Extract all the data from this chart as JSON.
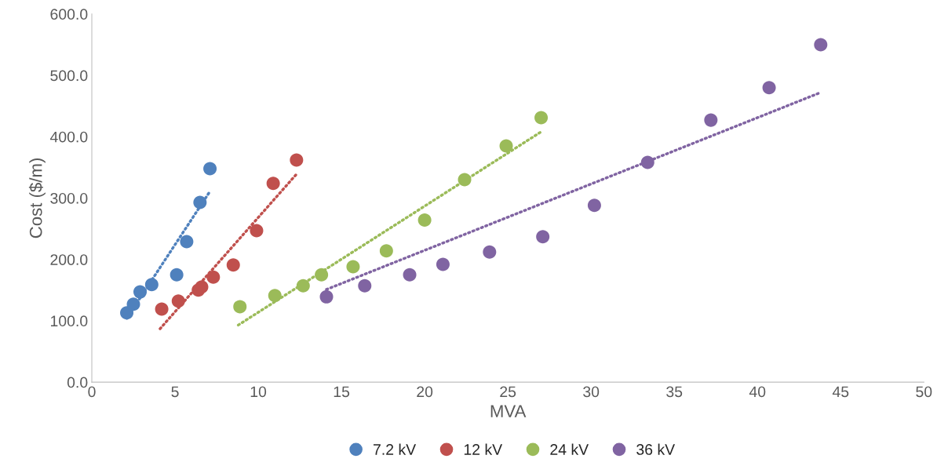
{
  "chart_data": {
    "type": "scatter",
    "xlabel": "MVA",
    "ylabel": "Cost ($/m)",
    "xlim": [
      0,
      50
    ],
    "xticks": [
      0,
      5,
      10,
      15,
      20,
      25,
      30,
      35,
      40,
      45,
      50
    ],
    "ylim": [
      0,
      600
    ],
    "yticks": [
      {
        "value": 0,
        "label": "0.0"
      },
      {
        "value": 100,
        "label": "100.0"
      },
      {
        "value": 200,
        "label": "200.0"
      },
      {
        "value": 300,
        "label": "300.0"
      },
      {
        "value": 400,
        "label": "400.0"
      },
      {
        "value": 500,
        "label": "500.0"
      },
      {
        "value": 600,
        "label": "600.0"
      }
    ],
    "grid": false,
    "legend": "bottom",
    "marker": "circle",
    "series": [
      {
        "name": "7.2 kV",
        "color": "#4f81bd",
        "x": [
          2.1,
          2.5,
          2.9,
          3.6,
          5.1,
          5.7,
          6.5,
          7.1
        ],
        "values": [
          113,
          127,
          147,
          159,
          175,
          229,
          293,
          348
        ]
      },
      {
        "name": "12 kV",
        "color": "#c0504d",
        "x": [
          4.2,
          5.2,
          6.4,
          6.6,
          7.3,
          8.5,
          9.9,
          10.9,
          12.3
        ],
        "values": [
          119,
          132,
          150,
          155,
          171,
          191,
          247,
          324,
          362
        ]
      },
      {
        "name": "24 kV",
        "color": "#9bbb59",
        "x": [
          8.9,
          11.0,
          12.7,
          13.8,
          15.7,
          17.7,
          20.0,
          22.4,
          24.9,
          27.0
        ],
        "values": [
          123,
          141,
          157,
          175,
          188,
          214,
          264,
          330,
          385,
          431
        ]
      },
      {
        "name": "36 kV",
        "color": "#8064a2",
        "x": [
          14.1,
          16.4,
          19.1,
          21.1,
          23.9,
          27.1,
          30.2,
          33.4,
          37.2,
          40.7,
          43.8
        ],
        "values": [
          139,
          157,
          175,
          192,
          212,
          237,
          288,
          358,
          427,
          480,
          550
        ]
      },
      {
        "type": "line",
        "line_style": "dotted",
        "marker": "none",
        "color": "#4f81bd",
        "x": [
          2.1,
          7.1
        ],
        "values": [
          104,
          311
        ]
      },
      {
        "type": "line",
        "line_style": "dotted",
        "marker": "none",
        "color": "#c0504d",
        "x": [
          4.1,
          12.3
        ],
        "values": [
          87,
          339
        ]
      },
      {
        "type": "line",
        "line_style": "dotted",
        "marker": "none",
        "color": "#9bbb59",
        "x": [
          8.8,
          27.0
        ],
        "values": [
          93,
          408
        ]
      },
      {
        "type": "line",
        "line_style": "dotted",
        "marker": "none",
        "color": "#8064a2",
        "x": [
          14.1,
          43.7
        ],
        "values": [
          151,
          471
        ]
      }
    ]
  }
}
